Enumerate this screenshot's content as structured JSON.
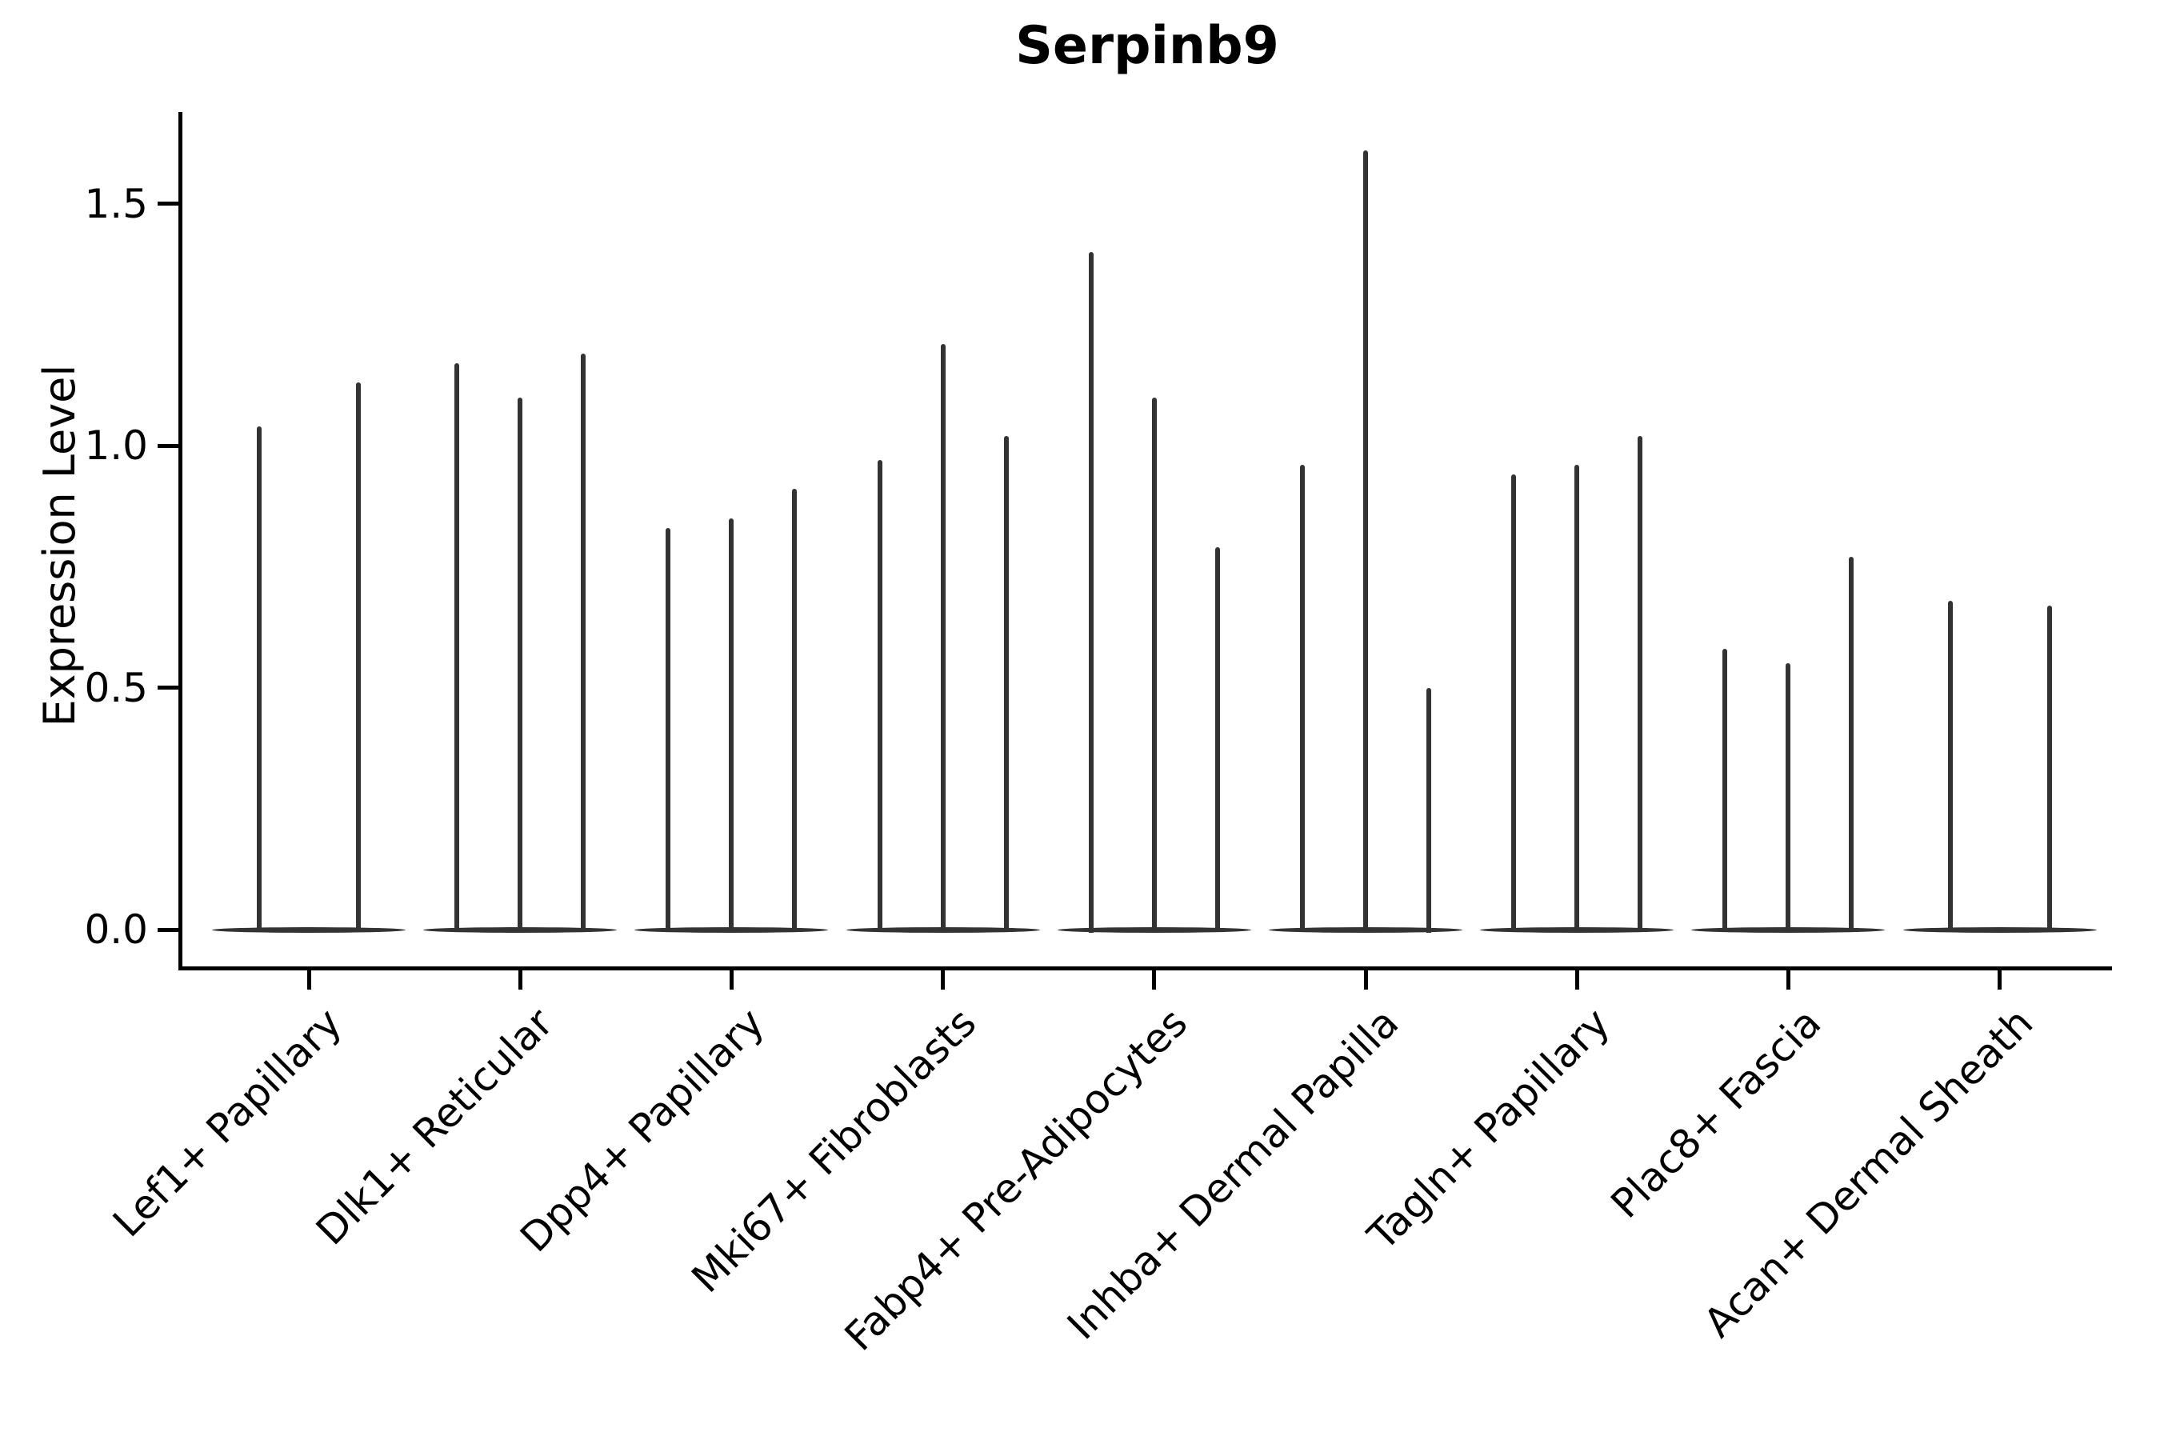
{
  "title": "Serpinb9",
  "ylabel": "Expression Level",
  "chart_data": {
    "type": "violin",
    "title": "Serpinb9",
    "xlabel": "",
    "ylabel": "Expression Level",
    "ylim": [
      -0.08,
      1.69
    ],
    "ytick_labels": [
      "0.0",
      "0.5",
      "1.0",
      "1.5"
    ],
    "ytick_values": [
      0.0,
      0.5,
      1.0,
      1.5
    ],
    "grid": "off",
    "legend": "none",
    "description": "Thin single-gene expression violins; each cell-type category shows 2-3 needle-like violins rising from a flat base at 0.",
    "baseline_value": 0.0,
    "categories": [
      {
        "label": "Lef1+ Papillary",
        "violin_maxima": [
          1.04,
          1.13
        ]
      },
      {
        "label": "Dlk1+ Reticular",
        "violin_maxima": [
          1.17,
          1.1,
          1.19
        ]
      },
      {
        "label": "Dpp4+ Papillary",
        "violin_maxima": [
          0.83,
          0.85,
          0.91
        ]
      },
      {
        "label": "Mki67+ Fibroblasts",
        "violin_maxima": [
          0.97,
          1.21,
          1.02
        ]
      },
      {
        "label": "Fabp4+ Pre-Adipocytes",
        "violin_maxima": [
          1.4,
          1.1,
          0.79
        ]
      },
      {
        "label": "Inhba+ Dermal Papilla",
        "violin_maxima": [
          0.96,
          1.61,
          0.5
        ]
      },
      {
        "label": "Tagln+ Papillary",
        "violin_maxima": [
          0.94,
          0.96,
          1.02
        ]
      },
      {
        "label": "Plac8+ Fascia",
        "violin_maxima": [
          0.58,
          0.55,
          0.77
        ]
      },
      {
        "label": "Acan+ Dermal Sheath",
        "violin_maxima": [
          0.68,
          0.67
        ]
      }
    ],
    "colors": {
      "violin": "#333333",
      "axis": "#000000",
      "text": "#000000",
      "background": "#ffffff"
    }
  }
}
